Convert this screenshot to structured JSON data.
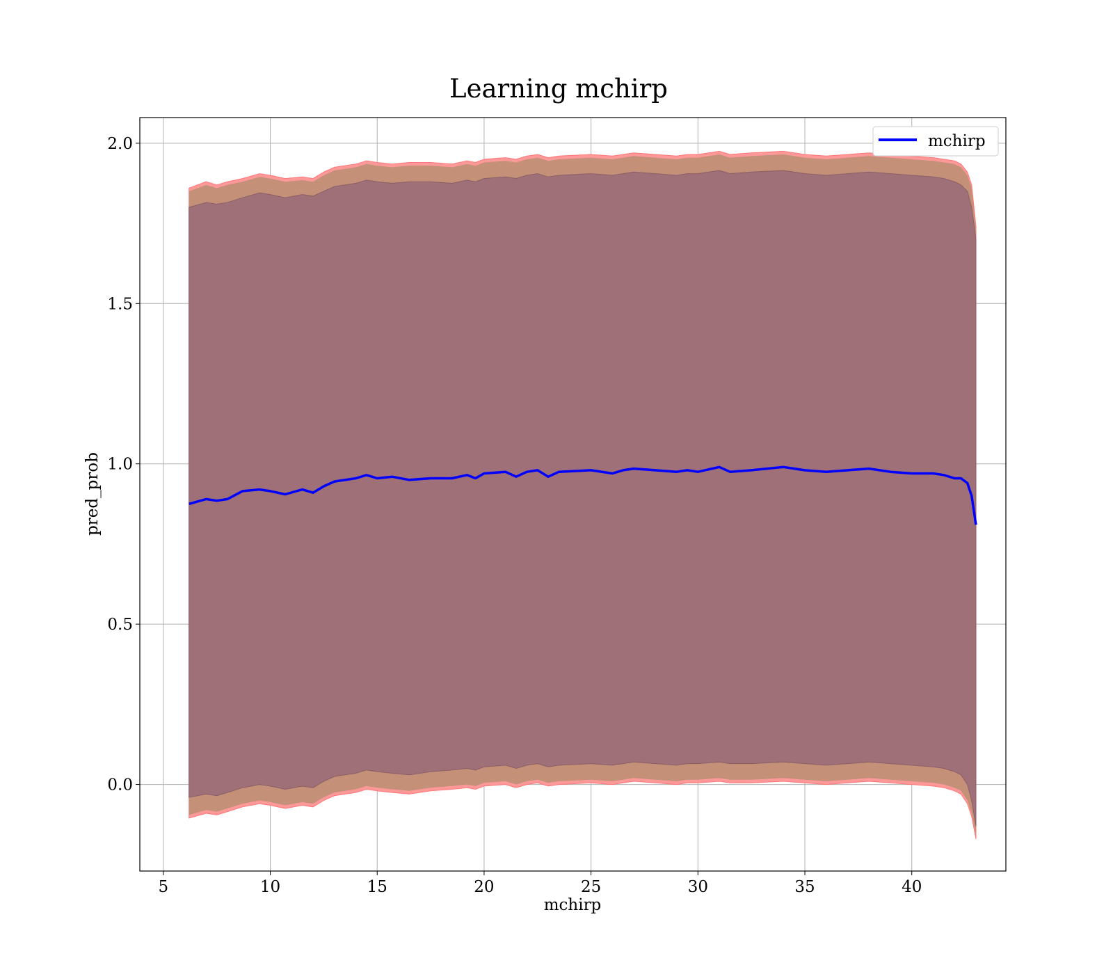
{
  "chart_data": {
    "type": "line",
    "title": "Learning mchirp",
    "xlabel": "mchirp",
    "ylabel": "pred_prob",
    "xlim": [
      3.9,
      44.4
    ],
    "ylim": [
      -0.27,
      2.08
    ],
    "xticks": [
      5,
      10,
      15,
      20,
      25,
      30,
      35,
      40
    ],
    "yticks": [
      0.0,
      0.5,
      1.0,
      1.5,
      2.0
    ],
    "xtick_labels": [
      "5",
      "10",
      "15",
      "20",
      "25",
      "30",
      "35",
      "40"
    ],
    "ytick_labels": [
      "0.0",
      "0.5",
      "1.0",
      "1.5",
      "2.0"
    ],
    "grid": true,
    "legend_position": "top-right",
    "colors": {
      "line": "#0000ff",
      "band_outer": "#ff9999",
      "band_middle": "#c49078",
      "band_inner": "#a07078"
    },
    "x": [
      6.2,
      7,
      7.5,
      8,
      8.7,
      9.5,
      10,
      10.7,
      11.5,
      12,
      12.5,
      13,
      14,
      14.5,
      15,
      15.7,
      16.5,
      17.5,
      18.5,
      19.2,
      19.6,
      20,
      21,
      21.5,
      22,
      22.5,
      23,
      23.5,
      25,
      26,
      26.5,
      27,
      28,
      29,
      29.5,
      30,
      31,
      31.5,
      32.5,
      34,
      35,
      36,
      37,
      38,
      39,
      40,
      41,
      41.5,
      42,
      42.3,
      42.6,
      42.8,
      43
    ],
    "series": [
      {
        "name": "mchirp",
        "role": "mean",
        "values": [
          0.875,
          0.89,
          0.885,
          0.89,
          0.915,
          0.92,
          0.915,
          0.905,
          0.92,
          0.91,
          0.93,
          0.945,
          0.955,
          0.965,
          0.955,
          0.96,
          0.95,
          0.955,
          0.955,
          0.965,
          0.955,
          0.97,
          0.975,
          0.96,
          0.975,
          0.98,
          0.96,
          0.975,
          0.98,
          0.97,
          0.98,
          0.985,
          0.98,
          0.975,
          0.98,
          0.975,
          0.99,
          0.975,
          0.98,
          0.99,
          0.98,
          0.975,
          0.98,
          0.985,
          0.975,
          0.97,
          0.97,
          0.965,
          0.955,
          0.955,
          0.94,
          0.9,
          0.81
        ]
      }
    ],
    "bands": [
      {
        "role": "outer",
        "upper": [
          1.86,
          1.88,
          1.87,
          1.88,
          1.89,
          1.905,
          1.9,
          1.89,
          1.895,
          1.89,
          1.91,
          1.925,
          1.935,
          1.945,
          1.94,
          1.935,
          1.94,
          1.94,
          1.935,
          1.945,
          1.94,
          1.95,
          1.955,
          1.95,
          1.96,
          1.965,
          1.955,
          1.96,
          1.965,
          1.96,
          1.965,
          1.97,
          1.965,
          1.96,
          1.965,
          1.965,
          1.975,
          1.965,
          1.97,
          1.975,
          1.965,
          1.96,
          1.965,
          1.97,
          1.965,
          1.96,
          1.955,
          1.95,
          1.945,
          1.935,
          1.91,
          1.87,
          1.74
        ],
        "lower": [
          -0.105,
          -0.09,
          -0.095,
          -0.085,
          -0.07,
          -0.06,
          -0.065,
          -0.075,
          -0.065,
          -0.07,
          -0.05,
          -0.035,
          -0.025,
          -0.015,
          -0.02,
          -0.025,
          -0.03,
          -0.02,
          -0.015,
          -0.01,
          -0.015,
          -0.005,
          0.0,
          -0.01,
          0.0,
          0.005,
          -0.005,
          0.0,
          0.005,
          0.0,
          0.005,
          0.01,
          0.005,
          0.0,
          0.005,
          0.005,
          0.01,
          0.005,
          0.005,
          0.01,
          0.005,
          0.0,
          0.005,
          0.01,
          0.005,
          0.0,
          -0.005,
          -0.01,
          -0.02,
          -0.03,
          -0.06,
          -0.1,
          -0.17
        ]
      },
      {
        "role": "inner",
        "upper": [
          1.8,
          1.815,
          1.81,
          1.815,
          1.83,
          1.845,
          1.84,
          1.83,
          1.84,
          1.835,
          1.85,
          1.865,
          1.875,
          1.885,
          1.88,
          1.875,
          1.88,
          1.88,
          1.875,
          1.885,
          1.88,
          1.89,
          1.895,
          1.89,
          1.9,
          1.905,
          1.895,
          1.9,
          1.905,
          1.9,
          1.905,
          1.91,
          1.905,
          1.9,
          1.905,
          1.905,
          1.915,
          1.905,
          1.91,
          1.915,
          1.905,
          1.9,
          1.905,
          1.91,
          1.905,
          1.9,
          1.895,
          1.89,
          1.88,
          1.87,
          1.85,
          1.8,
          1.7
        ],
        "lower": [
          -0.04,
          -0.03,
          -0.035,
          -0.025,
          -0.01,
          0.0,
          -0.005,
          -0.015,
          -0.005,
          -0.01,
          0.01,
          0.025,
          0.035,
          0.045,
          0.04,
          0.035,
          0.03,
          0.04,
          0.045,
          0.05,
          0.045,
          0.055,
          0.06,
          0.05,
          0.06,
          0.065,
          0.055,
          0.06,
          0.065,
          0.06,
          0.065,
          0.07,
          0.065,
          0.06,
          0.065,
          0.065,
          0.07,
          0.065,
          0.065,
          0.07,
          0.065,
          0.06,
          0.065,
          0.07,
          0.065,
          0.06,
          0.055,
          0.05,
          0.04,
          0.03,
          0.0,
          -0.05,
          -0.13
        ]
      }
    ]
  }
}
